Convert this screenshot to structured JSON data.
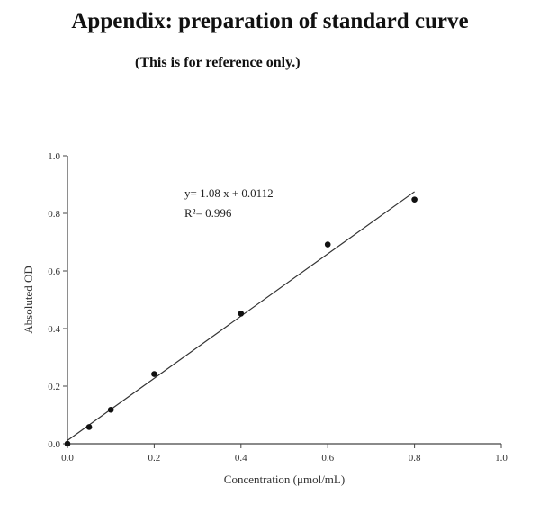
{
  "header": {
    "title": "Appendix: preparation of standard curve",
    "note": "(This is for reference only.)"
  },
  "chart_data": {
    "type": "scatter",
    "xlabel": "Concentration (μmol/mL)",
    "ylabel": "Absoluted OD",
    "xlim": [
      0,
      1.0
    ],
    "ylim": [
      0,
      1.0
    ],
    "xticks": [
      "0.0",
      "0.2",
      "0.4",
      "0.6",
      "0.8",
      "1.0"
    ],
    "yticks": [
      "0.0",
      "0.2",
      "0.4",
      "0.6",
      "0.8",
      "1.0"
    ],
    "points": [
      {
        "x": 0.0,
        "y": 0.0
      },
      {
        "x": 0.05,
        "y": 0.058
      },
      {
        "x": 0.1,
        "y": 0.118
      },
      {
        "x": 0.2,
        "y": 0.242
      },
      {
        "x": 0.4,
        "y": 0.452
      },
      {
        "x": 0.6,
        "y": 0.692
      },
      {
        "x": 0.8,
        "y": 0.848
      }
    ],
    "fit": {
      "slope": 1.08,
      "intercept": 0.0112,
      "x_range": [
        0,
        0.8
      ]
    },
    "equation": "y= 1.08 x + 0.0112",
    "r_squared": "R²= 0.996",
    "grid": false,
    "colors": {
      "points": "#111111",
      "line": "#333333",
      "axis": "#444444"
    }
  }
}
